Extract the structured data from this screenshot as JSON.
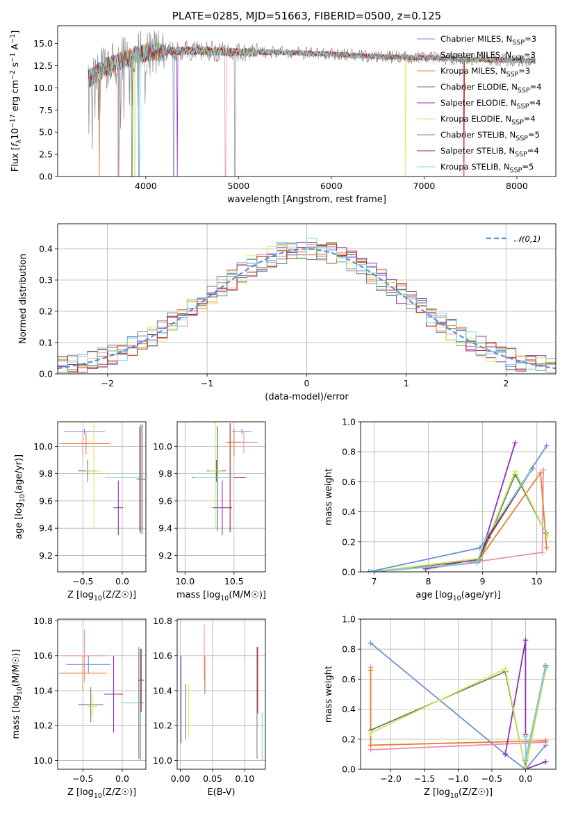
{
  "chart_data": [
    {
      "id": "spectrum",
      "type": "line",
      "title": "PLATE=0285, MJD=51663, FIBERID=0500, z=0.125",
      "xlabel": "wavelength [Angstrom, rest frame]",
      "ylabel": "Flux [f_λ10^-17 erg cm^-2 s^-1 A^-1]",
      "xlim": [
        3050,
        8420
      ],
      "ylim": [
        0,
        17
      ],
      "xticks": [
        4000,
        5000,
        6000,
        7000,
        8000
      ],
      "yticks": [
        0.0,
        2.5,
        5.0,
        7.5,
        10.0,
        12.5,
        15.0
      ],
      "grid": false,
      "legend_position": "upper-right",
      "data_range": [
        3380,
        8200
      ],
      "data_baseline": {
        "x": [
          3380,
          3600,
          3800,
          4000,
          4500,
          5000,
          5500,
          6000,
          6500,
          7000,
          7500,
          8000,
          8200
        ],
        "y": [
          11.0,
          12.5,
          13.4,
          14.0,
          14.2,
          14.0,
          14.0,
          13.8,
          13.5,
          13.4,
          13.2,
          13.1,
          13.0
        ]
      },
      "series": [
        {
          "name": "Chabrier MILES, N_SSP=3",
          "color": "#6a8fd8",
          "dips": [
            3930,
            4300
          ]
        },
        {
          "name": "Salpeter MILES, N_SSP=3",
          "color": "#e78fb9",
          "dips": [
            3700,
            4860
          ]
        },
        {
          "name": "Kroupa MILES, N_SSP=3",
          "color": "#e87e2c",
          "dips": [
            3500,
            7430
          ]
        },
        {
          "name": "Chabrier ELODIE, N_SSP=4",
          "color": "#607c5e",
          "dips": [
            3850
          ]
        },
        {
          "name": "Salpeter ELODIE, N_SSP=4",
          "color": "#8e30b8",
          "dips": [
            4340
          ]
        },
        {
          "name": "Kroupa ELODIE, N_SSP=4",
          "color": "#d7ea55",
          "dips": [
            3880,
            6800
          ]
        },
        {
          "name": "Chabrier STELIB, N_SSP=5",
          "color": "#808080",
          "dips": [
            3710,
            4960
          ]
        },
        {
          "name": "Salpeter STELIB, N_SSP=4",
          "color": "#b11c1c",
          "dips": [
            7430
          ]
        },
        {
          "name": "Kroupa STELIB, N_SSP=5",
          "color": "#7dd4dc",
          "dips": [
            3920
          ]
        }
      ]
    },
    {
      "id": "residuals",
      "type": "histogram",
      "xlabel": "(data-model)/error",
      "ylabel": "Normed distribution",
      "xlim": [
        -2.5,
        2.5
      ],
      "ylim": [
        0,
        0.48
      ],
      "xticks": [
        -2,
        -1,
        0,
        1,
        2
      ],
      "yticks": [
        0.0,
        0.1,
        0.2,
        0.3,
        0.4
      ],
      "grid": true,
      "legend_position": "upper-right",
      "gaussian": {
        "name": "𝒩(0,1)",
        "mu": 0,
        "sigma": 1,
        "color": "#5b8fd6"
      },
      "bin_width": 0.1,
      "bin_start": -2.5
    },
    {
      "id": "age_vs_Z",
      "type": "errorbar",
      "xlabel": "Z [log10(Z/Z☉)]",
      "ylabel": "age  [log10(age/yr)]",
      "xlim": [
        -0.82,
        0.3
      ],
      "ylim": [
        9.08,
        10.18
      ],
      "xticks": [
        -0.5,
        0.0
      ],
      "yticks": [
        9.2,
        9.4,
        9.6,
        9.8,
        10.0
      ],
      "grid": true,
      "points": [
        {
          "x": -0.48,
          "xerr": 0.26,
          "y": 10.11,
          "yerr": 0.02,
          "color": "#6a8fd8"
        },
        {
          "x": -0.5,
          "xerr": 0.3,
          "y": 10.02,
          "yerr": 0.1,
          "color": "#e78fb9"
        },
        {
          "x": -0.46,
          "xerr": 0.3,
          "y": 10.02,
          "yerr": 0.08,
          "color": "#e87e2c"
        },
        {
          "x": -0.44,
          "xerr": 0.12,
          "y": 9.82,
          "yerr": 0.08,
          "color": "#607c5e"
        },
        {
          "x": -0.36,
          "xerr": 0.1,
          "y": 9.82,
          "yerr": 0.42,
          "color": "#d7ea55"
        },
        {
          "x": -0.05,
          "xerr": 0.06,
          "y": 9.55,
          "yerr": 0.2,
          "color": "#8e30b8"
        },
        {
          "x": 0.22,
          "xerr": 0.04,
          "y": 9.76,
          "yerr": 0.38,
          "color": "#808080"
        },
        {
          "x": 0.25,
          "xerr": 0.04,
          "y": 9.76,
          "yerr": 0.4,
          "color": "#b11c1c"
        },
        {
          "x": 0.0,
          "xerr": 0.22,
          "y": 9.77,
          "yerr": 0.0,
          "color": "#7dd4dc"
        },
        {
          "x": 0.23,
          "xerr": 0.04,
          "y": 9.76,
          "yerr": 0.4,
          "color": "#4c8a8f"
        }
      ]
    },
    {
      "id": "age_vs_mass",
      "type": "errorbar",
      "xlabel": "mass [log10(M/M☉)]",
      "ylabel": "",
      "xlim": [
        9.92,
        10.82
      ],
      "ylim": [
        9.08,
        10.18
      ],
      "xticks": [
        10.0,
        10.5
      ],
      "yticks": [
        9.2,
        9.4,
        9.6,
        9.8,
        10.0
      ],
      "grid": true,
      "points": [
        {
          "x": 10.58,
          "xerr": 0.1,
          "y": 10.11,
          "yerr": 0.02,
          "color": "#6a8fd8"
        },
        {
          "x": 10.6,
          "xerr": 0.14,
          "y": 10.03,
          "yerr": 0.08,
          "color": "#e78fb9"
        },
        {
          "x": 10.5,
          "xerr": 0.08,
          "y": 10.03,
          "yerr": 0.1,
          "color": "#e87e2c"
        },
        {
          "x": 10.32,
          "xerr": 0.1,
          "y": 9.82,
          "yerr": 0.08,
          "color": "#607c5e"
        },
        {
          "x": 10.31,
          "xerr": 0.06,
          "y": 9.82,
          "yerr": 0.42,
          "color": "#d7ea55"
        },
        {
          "x": 10.38,
          "xerr": 0.1,
          "y": 9.55,
          "yerr": 0.2,
          "color": "#8e30b8"
        },
        {
          "x": 10.33,
          "xerr": 0.26,
          "y": 9.77,
          "yerr": 0.38,
          "color": "#808080"
        },
        {
          "x": 10.46,
          "xerr": 0.16,
          "y": 9.77,
          "yerr": 0.4,
          "color": "#b11c1c"
        },
        {
          "x": 10.3,
          "xerr": 0.2,
          "y": 9.77,
          "yerr": 0.0,
          "color": "#7dd4dc"
        },
        {
          "x": 10.33,
          "xerr": 0.0,
          "y": 9.76,
          "yerr": 0.38,
          "color": "#4c8a8f"
        }
      ]
    },
    {
      "id": "weight_vs_age",
      "type": "line",
      "xlabel": "age  [log10(age/yr)]",
      "ylabel": "mass weight",
      "xlim": [
        6.75,
        10.35
      ],
      "ylim": [
        0.0,
        1.0
      ],
      "xticks": [
        7,
        8,
        9,
        10
      ],
      "yticks": [
        0.0,
        0.2,
        0.4,
        0.6,
        0.8,
        1.0
      ],
      "grid": true,
      "series": [
        {
          "name": "Chabrier MILES",
          "color": "#6a8fd8",
          "x": [
            6.9,
            8.95,
            10.18
          ],
          "y": [
            0.0,
            0.16,
            0.84
          ]
        },
        {
          "name": "Salpeter MILES",
          "color": "#e78fb9",
          "x": [
            7.95,
            10.1,
            10.12
          ],
          "y": [
            0.02,
            0.13,
            0.68
          ]
        },
        {
          "name": "Kroupa MILES",
          "color": "#e87e2c",
          "x": [
            6.95,
            8.95,
            10.07,
            10.18
          ],
          "y": [
            0.0,
            0.09,
            0.66,
            0.16
          ]
        },
        {
          "name": "Chabrier ELODIE",
          "color": "#607c5e",
          "x": [
            6.95,
            8.95,
            9.6,
            10.17
          ],
          "y": [
            0.0,
            0.08,
            0.65,
            0.26
          ]
        },
        {
          "name": "Salpeter ELODIE",
          "color": "#8e30b8",
          "x": [
            7.95,
            8.95,
            9.6
          ],
          "y": [
            0.02,
            0.09,
            0.86
          ]
        },
        {
          "name": "Kroupa ELODIE",
          "color": "#d7ea55",
          "x": [
            6.95,
            8.95,
            9.6,
            10.2
          ],
          "y": [
            0.0,
            0.09,
            0.67,
            0.24
          ]
        },
        {
          "name": "Chabrier STELIB",
          "color": "#808080",
          "x": [
            6.95,
            8.9,
            9.1,
            9.92
          ],
          "y": [
            0.0,
            0.06,
            0.22,
            0.69
          ]
        },
        {
          "name": "Salpeter STELIB",
          "color": "#b11c1c",
          "x": [
            6.95,
            8.9,
            9.1,
            9.9
          ],
          "y": [
            0.0,
            0.06,
            0.23,
            0.68
          ]
        },
        {
          "name": "Kroupa STELIB",
          "color": "#7dd4dc",
          "x": [
            6.95,
            8.9,
            9.05,
            9.9
          ],
          "y": [
            0.0,
            0.06,
            0.22,
            0.68
          ]
        }
      ]
    },
    {
      "id": "mass_vs_Z",
      "type": "errorbar",
      "xlabel": "Z [log10(Z/Z☉)]",
      "ylabel": "mass [log10(M/M☉)]",
      "xlim": [
        -0.82,
        0.3
      ],
      "ylim": [
        9.95,
        10.81
      ],
      "xticks": [
        -0.5,
        0.0
      ],
      "yticks": [
        10.0,
        10.2,
        10.4,
        10.6,
        10.8
      ],
      "grid": true,
      "points": [
        {
          "x": -0.43,
          "xerr": 0.28,
          "y": 10.55,
          "yerr": 0.05,
          "color": "#6a8fd8"
        },
        {
          "x": -0.48,
          "xerr": 0.28,
          "y": 10.6,
          "yerr": 0.15,
          "color": "#e78fb9"
        },
        {
          "x": -0.5,
          "xerr": 0.3,
          "y": 10.5,
          "yerr": 0.1,
          "color": "#e87e2c"
        },
        {
          "x": -0.4,
          "xerr": 0.16,
          "y": 10.32,
          "yerr": 0.1,
          "color": "#607c5e"
        },
        {
          "x": -0.38,
          "xerr": 0.06,
          "y": 10.31,
          "yerr": 0.07,
          "color": "#d7ea55"
        },
        {
          "x": -0.11,
          "xerr": 0.12,
          "y": 10.38,
          "yerr": 0.22,
          "color": "#8e30b8"
        },
        {
          "x": 0.21,
          "xerr": 0.06,
          "y": 10.33,
          "yerr": 0.32,
          "color": "#808080"
        },
        {
          "x": 0.24,
          "xerr": 0.04,
          "y": 10.46,
          "yerr": 0.18,
          "color": "#b11c1c"
        },
        {
          "x": 0.1,
          "xerr": 0.12,
          "y": 10.33,
          "yerr": 0.0,
          "color": "#7dd4dc"
        },
        {
          "x": 0.23,
          "xerr": 0.0,
          "y": 10.32,
          "yerr": 0.32,
          "color": "#4c8a8f"
        }
      ]
    },
    {
      "id": "mass_vs_ebv",
      "type": "errorbar",
      "xlabel": "E(B-V)",
      "ylabel": "",
      "xlim": [
        -0.005,
        0.132
      ],
      "ylim": [
        9.95,
        10.81
      ],
      "xticks": [
        0.0,
        0.05,
        0.1
      ],
      "yticks": [
        10.0,
        10.2,
        10.4,
        10.6,
        10.8
      ],
      "grid": true,
      "points": [
        {
          "x": 0.038,
          "xerr": 0,
          "y": 10.44,
          "yerr": 0.06,
          "color": "#6a8fd8"
        },
        {
          "x": 0.037,
          "xerr": 0,
          "y": 10.62,
          "yerr": 0.16,
          "color": "#e78fb9"
        },
        {
          "x": 0.038,
          "xerr": 0,
          "y": 10.5,
          "yerr": 0.1,
          "color": "#e87e2c"
        },
        {
          "x": 0.008,
          "xerr": 0,
          "y": 10.28,
          "yerr": 0.16,
          "color": "#607c5e"
        },
        {
          "x": 0.013,
          "xerr": 0,
          "y": 10.29,
          "yerr": 0.15,
          "color": "#d7ea55"
        },
        {
          "x": 0.001,
          "xerr": 0,
          "y": 10.35,
          "yerr": 0.25,
          "color": "#8e30b8"
        },
        {
          "x": 0.119,
          "xerr": 0,
          "y": 10.33,
          "yerr": 0.32,
          "color": "#808080"
        },
        {
          "x": 0.12,
          "xerr": 0,
          "y": 10.46,
          "yerr": 0.19,
          "color": "#b11c1c"
        },
        {
          "x": 0.127,
          "xerr": 0,
          "y": 10.14,
          "yerr": 0.14,
          "color": "#7dd4dc"
        }
      ]
    },
    {
      "id": "weight_vs_Z",
      "type": "line",
      "xlabel": "Z [log10(Z/Z☉)]",
      "ylabel": "mass weight",
      "xlim": [
        -2.45,
        0.45
      ],
      "ylim": [
        0.0,
        1.0
      ],
      "xticks": [
        -2.0,
        -1.5,
        -1.0,
        -0.5,
        0.0
      ],
      "grid": true,
      "yticks": [
        0.0,
        0.2,
        0.4,
        0.6,
        0.8,
        1.0
      ],
      "series": [
        {
          "name": "Chabrier MILES",
          "color": "#6a8fd8",
          "x": [
            -2.3,
            -0.3,
            0.0,
            0.3
          ],
          "y": [
            0.84,
            0.1,
            0.0,
            0.16
          ]
        },
        {
          "name": "Salpeter MILES",
          "color": "#e78fb9",
          "x": [
            -2.3,
            -2.3,
            0.3
          ],
          "y": [
            0.68,
            0.13,
            0.18
          ]
        },
        {
          "name": "Kroupa MILES",
          "color": "#e87e2c",
          "x": [
            -2.3,
            -2.3,
            0.3
          ],
          "y": [
            0.66,
            0.16,
            0.19
          ]
        },
        {
          "name": "Chabrier ELODIE",
          "color": "#607c5e",
          "x": [
            -2.3,
            -0.3,
            0.0,
            0.3
          ],
          "y": [
            0.26,
            0.65,
            0.0,
            0.69
          ]
        },
        {
          "name": "Salpeter ELODIE",
          "color": "#8e30b8",
          "x": [
            -0.3,
            0.0,
            0.0,
            0.3
          ],
          "y": [
            0.1,
            0.86,
            0.0,
            0.05
          ]
        },
        {
          "name": "Kroupa ELODIE",
          "color": "#d7ea55",
          "x": [
            -2.3,
            -0.3,
            0.0,
            0.3
          ],
          "y": [
            0.24,
            0.67,
            0.0,
            0.66
          ]
        },
        {
          "name": "Chabrier STELIB",
          "color": "#808080",
          "x": [
            0.0,
            0.0,
            0.3
          ],
          "y": [
            0.22,
            0.06,
            0.69
          ]
        },
        {
          "name": "Salpeter STELIB",
          "color": "#b11c1c",
          "x": [
            0.0,
            0.0,
            0.3
          ],
          "y": [
            0.23,
            0.06,
            0.68
          ]
        },
        {
          "name": "Kroupa STELIB",
          "color": "#7dd4dc",
          "x": [
            0.0,
            0.0,
            0.3
          ],
          "y": [
            0.22,
            0.06,
            0.68
          ]
        }
      ]
    }
  ]
}
